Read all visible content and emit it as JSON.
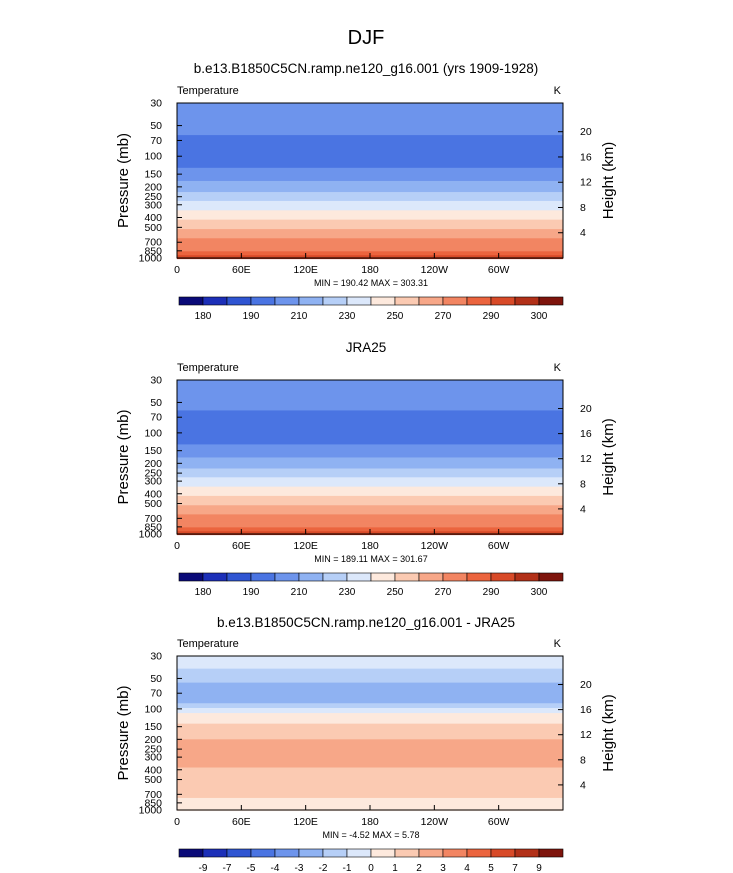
{
  "title": "DJF",
  "chart_data": [
    {
      "type": "heatmap",
      "title": "b.e13.B1850C5CN.ramp.ne120_g16.001 (yrs 1909-1928)",
      "left_label": "Temperature",
      "units": "K",
      "ylabel": "Pressure (mb)",
      "ylabel_right": "Height (km)",
      "pressure_ticks": [
        "30",
        "50",
        "70",
        "100",
        "150",
        "200",
        "250",
        "300",
        "400",
        "500",
        "700",
        "850",
        "1000"
      ],
      "height_ticks": [
        "20",
        "16",
        "12",
        "8",
        "4"
      ],
      "x_ticks": [
        "0",
        "60E",
        "120E",
        "180",
        "120W",
        "60W"
      ],
      "stats": "MIN = 190.42  MAX = 303.31",
      "colorbar_labels": [
        "180",
        "190",
        "210",
        "230",
        "250",
        "270",
        "290",
        "300"
      ],
      "colorbar_colors": [
        "#0a0a78",
        "#1c2fb8",
        "#2f55d2",
        "#4a74e2",
        "#6d94ec",
        "#8fb2f2",
        "#b6cff7",
        "#dce8fb",
        "#fde9dd",
        "#fbcab2",
        "#f7a788",
        "#f28562",
        "#eb643e",
        "#d84a28",
        "#b23018",
        "#7e140c"
      ],
      "bands": [
        {
          "p": 30,
          "value": 205
        },
        {
          "p": 42,
          "value": 203
        },
        {
          "p": 62,
          "value": 199
        },
        {
          "p": 90,
          "value": 199
        },
        {
          "p": 130,
          "value": 206
        },
        {
          "p": 175,
          "value": 214
        },
        {
          "p": 225,
          "value": 224
        },
        {
          "p": 275,
          "value": 234
        },
        {
          "p": 340,
          "value": 244
        },
        {
          "p": 420,
          "value": 254
        },
        {
          "p": 520,
          "value": 262
        },
        {
          "p": 640,
          "value": 270
        },
        {
          "p": 760,
          "value": 278
        },
        {
          "p": 860,
          "value": 285
        },
        {
          "p": 940,
          "value": 292
        },
        {
          "p": 1000,
          "value": 298
        }
      ]
    },
    {
      "type": "heatmap",
      "title": "JRA25",
      "left_label": "Temperature",
      "units": "K",
      "ylabel": "Pressure (mb)",
      "ylabel_right": "Height (km)",
      "pressure_ticks": [
        "30",
        "50",
        "70",
        "100",
        "150",
        "200",
        "250",
        "300",
        "400",
        "500",
        "700",
        "850",
        "1000"
      ],
      "height_ticks": [
        "20",
        "16",
        "12",
        "8",
        "4"
      ],
      "x_ticks": [
        "0",
        "60E",
        "120E",
        "180",
        "120W",
        "60W"
      ],
      "stats": "MIN = 189.11  MAX = 301.67",
      "colorbar_labels": [
        "180",
        "190",
        "210",
        "230",
        "250",
        "270",
        "290",
        "300"
      ],
      "colorbar_colors": [
        "#0a0a78",
        "#1c2fb8",
        "#2f55d2",
        "#4a74e2",
        "#6d94ec",
        "#8fb2f2",
        "#b6cff7",
        "#dce8fb",
        "#fde9dd",
        "#fbcab2",
        "#f7a788",
        "#f28562",
        "#eb643e",
        "#d84a28",
        "#b23018",
        "#7e140c"
      ],
      "bands": [
        {
          "p": 30,
          "value": 207
        },
        {
          "p": 40,
          "value": 204
        },
        {
          "p": 60,
          "value": 198
        },
        {
          "p": 90,
          "value": 197
        },
        {
          "p": 130,
          "value": 205
        },
        {
          "p": 175,
          "value": 214
        },
        {
          "p": 225,
          "value": 224
        },
        {
          "p": 275,
          "value": 234
        },
        {
          "p": 340,
          "value": 244
        },
        {
          "p": 420,
          "value": 254
        },
        {
          "p": 520,
          "value": 262
        },
        {
          "p": 640,
          "value": 270
        },
        {
          "p": 760,
          "value": 278
        },
        {
          "p": 860,
          "value": 285
        },
        {
          "p": 940,
          "value": 292
        },
        {
          "p": 1000,
          "value": 298
        }
      ]
    },
    {
      "type": "heatmap",
      "title": "b.e13.B1850C5CN.ramp.ne120_g16.001 - JRA25",
      "left_label": "Temperature",
      "units": "K",
      "ylabel": "Pressure (mb)",
      "ylabel_right": "Height (km)",
      "pressure_ticks": [
        "30",
        "50",
        "70",
        "100",
        "150",
        "200",
        "250",
        "300",
        "400",
        "500",
        "700",
        "850",
        "1000"
      ],
      "height_ticks": [
        "20",
        "16",
        "12",
        "8",
        "4"
      ],
      "x_ticks": [
        "0",
        "60E",
        "120E",
        "180",
        "120W",
        "60W"
      ],
      "stats": "MIN = -4.52  MAX =  5.78",
      "colorbar_labels": [
        "-9",
        "-7",
        "-5",
        "-4",
        "-3",
        "-2",
        "-1",
        "0",
        "1",
        "2",
        "3",
        "4",
        "5",
        "7",
        "9"
      ],
      "colorbar_colors": [
        "#0a0a78",
        "#1c2fb8",
        "#2f55d2",
        "#4a74e2",
        "#6d94ec",
        "#8fb2f2",
        "#b6cff7",
        "#dce8fb",
        "#fde9dd",
        "#fbcab2",
        "#f7a788",
        "#f28562",
        "#eb643e",
        "#d84a28",
        "#b23018",
        "#7e140c"
      ],
      "bands": [
        {
          "p": 30,
          "value": -0.5
        },
        {
          "p": 40,
          "value": -1.5
        },
        {
          "p": 55,
          "value": -2.5
        },
        {
          "p": 72,
          "value": -2.5
        },
        {
          "p": 88,
          "value": -1.5
        },
        {
          "p": 98,
          "value": -0.5
        },
        {
          "p": 110,
          "value": 0.5
        },
        {
          "p": 140,
          "value": 1.5
        },
        {
          "p": 200,
          "value": 2.5
        },
        {
          "p": 280,
          "value": 2.5
        },
        {
          "p": 380,
          "value": 1.5
        },
        {
          "p": 600,
          "value": 1.5
        },
        {
          "p": 760,
          "value": 0.5
        },
        {
          "p": 1000,
          "value": 0.5
        }
      ]
    }
  ]
}
